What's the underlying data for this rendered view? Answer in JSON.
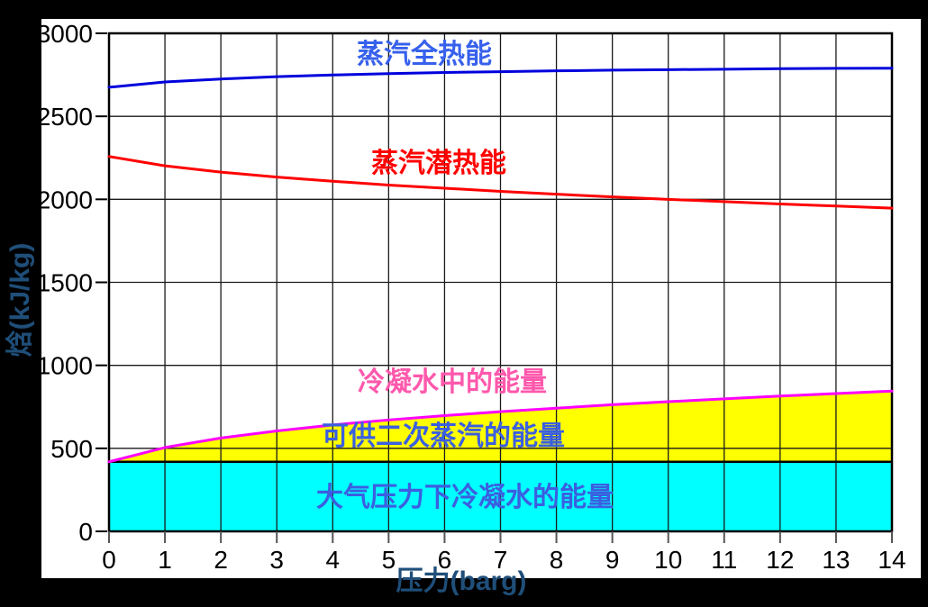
{
  "chart_data": {
    "type": "line",
    "title": "",
    "xlabel": "压力(barg)",
    "ylabel": "焓(kJ/kg)",
    "xlim": [
      0,
      14
    ],
    "ylim": [
      0,
      3000
    ],
    "xticks": [
      0,
      1,
      2,
      3,
      4,
      5,
      6,
      7,
      8,
      9,
      10,
      11,
      12,
      13,
      14
    ],
    "yticks": [
      0,
      500,
      1000,
      1500,
      2000,
      2500,
      3000
    ],
    "grid": true,
    "legend_position": "inline-annotations",
    "x": [
      0,
      1,
      2,
      3,
      4,
      5,
      6,
      7,
      8,
      9,
      10,
      11,
      12,
      13,
      14
    ],
    "series": [
      {
        "name": "蒸汽全热能",
        "color": "#0000DD",
        "label_color": "#3761EC",
        "values": [
          2675,
          2707,
          2725,
          2739,
          2749,
          2757,
          2764,
          2769,
          2774,
          2778,
          2781,
          2784,
          2787,
          2789,
          2790
        ]
      },
      {
        "name": "蒸汽潜热能",
        "color": "#FF0000",
        "label_color": "#FF0000",
        "values": [
          2258,
          2202,
          2164,
          2134,
          2109,
          2086,
          2067,
          2048,
          2031,
          2015,
          2000,
          1986,
          1972,
          1960,
          1947
        ]
      },
      {
        "name": "冷凝水中的能量",
        "color": "#FF00FF",
        "label_color": "#FF58AC",
        "values": [
          419,
          505,
          562,
          605,
          641,
          671,
          697,
          721,
          742,
          763,
          781,
          798,
          815,
          830,
          845
        ]
      }
    ],
    "areas": [
      {
        "label": "可供二次蒸汽的能量",
        "fill": "#FFFF00",
        "label_color": "#3B5FE0",
        "base_value": 419,
        "top_series_index": 2
      },
      {
        "label": "大气压力下冷凝水的能量",
        "fill": "#00FFFF",
        "label_color": "#3B5FE0",
        "base_value": 0,
        "top_value": 419
      }
    ],
    "divider_value": 419,
    "colors": {
      "panel_background": "#FFFFFF",
      "figure_background": "#000000",
      "grid": "#1A1A1A",
      "axis_border": "#000000",
      "tick_labels": "#000000",
      "axis_titles": "#1F4E79"
    }
  }
}
